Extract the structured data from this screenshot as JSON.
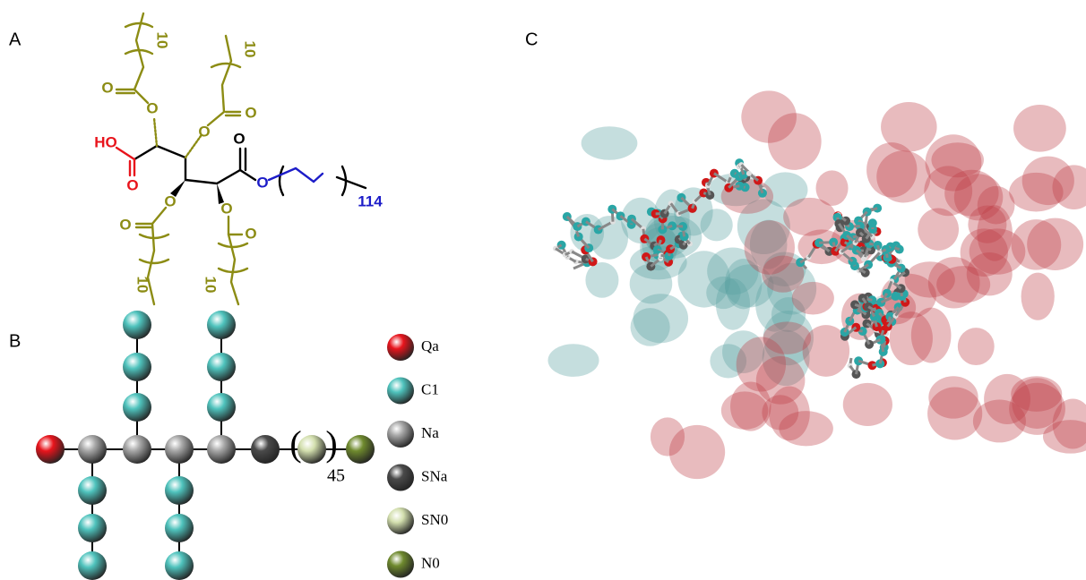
{
  "panel_labels": [
    "A",
    "B",
    "C"
  ],
  "structure": {
    "hydroxyl": "HO",
    "carboxyl_oxygen": "O",
    "ester_oxygens": [
      "O",
      "O",
      "O",
      "O",
      "O",
      "O",
      "O",
      "O"
    ],
    "peg_oxygens": [
      "O",
      "O"
    ],
    "chain_repeats": [
      "10",
      "10",
      "10",
      "10"
    ],
    "peg_repeat": "114"
  },
  "coarse_grained": {
    "peg_repeat": "45",
    "legend": [
      {
        "name": "Qa",
        "color": "#e8141c"
      },
      {
        "name": "C1",
        "color": "#4fc3bd"
      },
      {
        "name": "Na",
        "color": "#a6a6a6"
      },
      {
        "name": "SNa",
        "color": "#4a4a4a"
      },
      {
        "name": "SN0",
        "color": "#d3dfae"
      },
      {
        "name": "N0",
        "color": "#6f8a2e"
      }
    ]
  }
}
